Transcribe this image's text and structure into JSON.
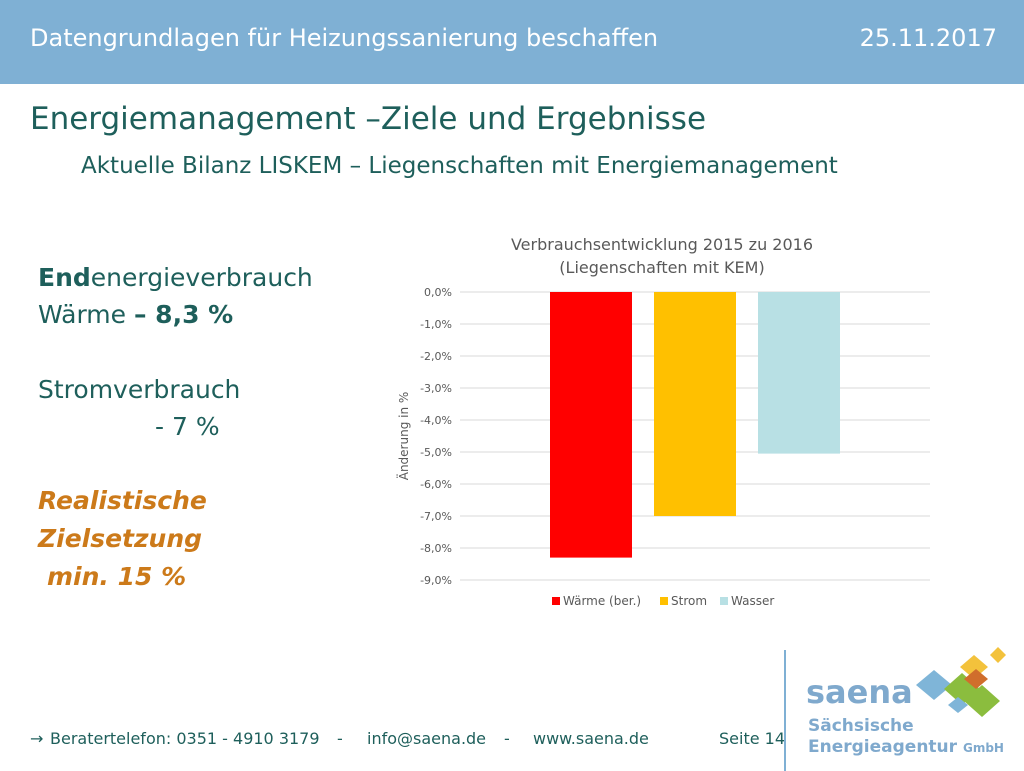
{
  "header": {
    "title": "Datengrundlagen für Heizungssanierung beschaffen",
    "date": "25.11.2017"
  },
  "title": "Energiemanagement –Ziele und Ergebnisse",
  "subtitle": "Aktuelle Bilanz LISKEM – Liegenschaften mit Energiemanagement",
  "left": {
    "end_bold": "End",
    "end_rest": "energieverbrauch",
    "waerme": "Wärme ",
    "waerme_value": "– 8,3 %",
    "strom": "Stromverbrauch",
    "strom_value": "- 7 %",
    "ziel1": "Realistische",
    "ziel2": "Zielsetzung",
    "ziel3": "min. 15 %"
  },
  "footer": {
    "arrow": "→",
    "phone": "Beratertelefon: 0351 - 4910 3179",
    "sep1": "-",
    "email": "info@saena.de",
    "sep2": "-",
    "web": "www.saena.de",
    "page": "Seite 14"
  },
  "logo": {
    "word": "saena",
    "line1": "Sächsische",
    "line2": "Energieagentur",
    "gmbh": "GmbH"
  },
  "chart_data": {
    "type": "bar",
    "title_lines": [
      "Verbrauchsentwicklung 2015 zu 2016",
      "(Liegenschaften mit KEM)"
    ],
    "ylabel": "Änderung in %",
    "ylim": [
      -9,
      0
    ],
    "yticks": [
      0,
      -1,
      -2,
      -3,
      -4,
      -5,
      -6,
      -7,
      -8,
      -9
    ],
    "ytick_labels": [
      "0,0%",
      "-1,0%",
      "-2,0%",
      "-3,0%",
      "-4,0%",
      "-5,0%",
      "-6,0%",
      "-7,0%",
      "-8,0%",
      "-9,0%"
    ],
    "grid": true,
    "legend_position": "bottom",
    "series": [
      {
        "name": "Wärme (ber.)",
        "values": [
          -8.3
        ],
        "color": "#ff0000"
      },
      {
        "name": "Strom",
        "values": [
          -7.0
        ],
        "color": "#ffc000"
      },
      {
        "name": "Wasser",
        "values": [
          -5.05
        ],
        "color": "#b8e0e4"
      }
    ]
  }
}
